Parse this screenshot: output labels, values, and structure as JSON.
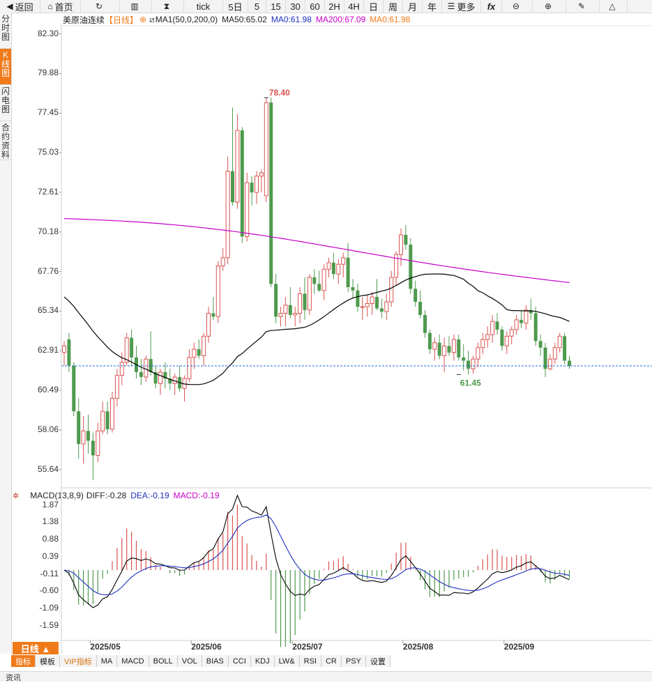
{
  "toolbar": [
    {
      "name": "back-button",
      "icon": "◀",
      "label": "返回"
    },
    {
      "name": "home-button",
      "icon": "⌂",
      "label": "首页"
    },
    {
      "name": "refresh-button",
      "icon": "↻",
      "label": ""
    },
    {
      "name": "bar-chart-button",
      "icon": "▥",
      "label": ""
    },
    {
      "name": "candle-button",
      "icon": "⧗",
      "label": ""
    },
    {
      "name": "period-tick",
      "icon": "",
      "label": "tick"
    },
    {
      "name": "period-5day",
      "icon": "",
      "label": "5日"
    },
    {
      "name": "period-5",
      "icon": "",
      "label": "5"
    },
    {
      "name": "period-15",
      "icon": "",
      "label": "15"
    },
    {
      "name": "period-30",
      "icon": "",
      "label": "30"
    },
    {
      "name": "period-60",
      "icon": "",
      "label": "60"
    },
    {
      "name": "period-2h",
      "icon": "",
      "label": "2H"
    },
    {
      "name": "period-4h",
      "icon": "",
      "label": "4H"
    },
    {
      "name": "period-day",
      "icon": "",
      "label": "日"
    },
    {
      "name": "period-week",
      "icon": "",
      "label": "周"
    },
    {
      "name": "period-month",
      "icon": "",
      "label": "月"
    },
    {
      "name": "period-year",
      "icon": "",
      "label": "年"
    },
    {
      "name": "more-button",
      "icon": "☰",
      "label": "更多"
    },
    {
      "name": "formula-button",
      "icon": "",
      "label": "fx"
    },
    {
      "name": "zoom-out-button",
      "icon": "⊖",
      "label": ""
    },
    {
      "name": "zoom-in-button",
      "icon": "⊕",
      "label": ""
    },
    {
      "name": "draw-button",
      "icon": "✎",
      "label": ""
    },
    {
      "name": "triangle-button",
      "icon": "△",
      "label": ""
    }
  ],
  "sidebar": [
    {
      "label": "分时图",
      "active": false
    },
    {
      "label": "K线图",
      "active": true
    },
    {
      "label": "闪电图",
      "active": false
    },
    {
      "label": "合约资料",
      "active": false
    }
  ],
  "main_legend": {
    "instrument": "美原油连续",
    "period": "【日线】",
    "ma_def": "MA1(50,0,200,0)",
    "ma50": "MA50:65.02",
    "ma0a": "MA0:61.98",
    "ma200": "MA200:67.09",
    "ma0b": "MA0:61.98"
  },
  "macd_legend": {
    "def": "MACD(13,8,9)",
    "diff": "DIFF:-0.28",
    "dea": "DEA:-0.19",
    "macd": "MACD:-0.19"
  },
  "period_button": "日线 ▲",
  "bottom_tabs": [
    "指标",
    "模板",
    "VIP指标",
    "MA",
    "MACD",
    "BOLL",
    "VOL",
    "BIAS",
    "CCI",
    "KDJ",
    "LW&",
    "RSI",
    "CR",
    "PSY",
    "设置"
  ],
  "status_text": "资讯",
  "colors": {
    "up": "#d9534f",
    "down": "#4e9a4e",
    "ma50": "#000000",
    "ma200": "#c800c8",
    "ref": "#1a6fd4",
    "dea": "#1c2fbf",
    "accent": "#f07a1a"
  },
  "chart_data": [
    {
      "type": "candlestick",
      "title": "美原油连续",
      "y_ticks": [
        82.3,
        79.88,
        77.45,
        75.03,
        72.61,
        70.18,
        67.76,
        65.34,
        62.91,
        60.49,
        58.06,
        55.64
      ],
      "ylim": [
        54.6,
        82.8
      ],
      "x_ticks": [
        {
          "label": "2025/05",
          "index": 6
        },
        {
          "label": "2025/06",
          "index": 27
        },
        {
          "label": "2025/07",
          "index": 48
        },
        {
          "label": "2025/08",
          "index": 71
        },
        {
          "label": "2025/09",
          "index": 92
        }
      ],
      "annotations": [
        {
          "text": "78.40",
          "index": 42,
          "value": 78.4
        },
        {
          "text": "61.45",
          "index": 82,
          "value": 61.45
        }
      ],
      "reference_line": 61.98,
      "ohlc": [
        [
          62.8,
          63.5,
          62.0,
          63.2
        ],
        [
          63.6,
          64.0,
          61.6,
          62.0
        ],
        [
          62.0,
          62.2,
          58.9,
          59.2
        ],
        [
          59.2,
          60.0,
          56.3,
          57.2
        ],
        [
          57.2,
          58.9,
          56.0,
          58.0
        ],
        [
          58.0,
          59.0,
          56.6,
          57.4
        ],
        [
          57.4,
          57.9,
          55.0,
          56.5
        ],
        [
          56.5,
          58.5,
          56.1,
          58.0
        ],
        [
          58.0,
          59.8,
          57.8,
          59.2
        ],
        [
          59.2,
          59.8,
          57.8,
          58.1
        ],
        [
          58.1,
          60.4,
          57.9,
          60.0
        ],
        [
          60.0,
          61.8,
          59.5,
          61.4
        ],
        [
          61.4,
          62.8,
          60.8,
          62.2
        ],
        [
          62.2,
          64.0,
          62.0,
          63.7
        ],
        [
          63.7,
          64.2,
          62.0,
          62.5
        ],
        [
          62.5,
          63.2,
          61.2,
          61.6
        ],
        [
          61.6,
          62.4,
          60.8,
          61.3
        ],
        [
          61.3,
          62.6,
          61.0,
          62.4
        ],
        [
          62.4,
          64.1,
          61.4,
          61.6
        ],
        [
          61.6,
          62.0,
          60.6,
          60.9
        ],
        [
          60.9,
          61.8,
          60.2,
          61.6
        ],
        [
          61.6,
          62.2,
          60.6,
          61.2
        ],
        [
          61.2,
          61.8,
          60.5,
          60.9
        ],
        [
          60.9,
          61.5,
          60.2,
          61.3
        ],
        [
          61.3,
          62.0,
          60.4,
          60.6
        ],
        [
          60.6,
          61.4,
          59.8,
          61.2
        ],
        [
          61.2,
          63.0,
          61.0,
          62.5
        ],
        [
          62.5,
          63.4,
          61.8,
          63.0
        ],
        [
          63.0,
          63.6,
          62.4,
          62.6
        ],
        [
          62.6,
          64.0,
          62.0,
          63.8
        ],
        [
          63.8,
          65.6,
          63.4,
          65.2
        ],
        [
          65.2,
          66.2,
          64.8,
          65.0
        ],
        [
          65.0,
          68.4,
          64.6,
          68.1
        ],
        [
          68.1,
          69.2,
          67.8,
          68.6
        ],
        [
          68.6,
          74.8,
          68.2,
          73.9
        ],
        [
          73.9,
          77.8,
          71.8,
          72.0
        ],
        [
          72.0,
          77.4,
          71.6,
          76.4
        ],
        [
          76.4,
          76.6,
          69.5,
          69.9
        ],
        [
          69.9,
          73.8,
          69.6,
          73.2
        ],
        [
          73.2,
          73.6,
          71.8,
          72.6
        ],
        [
          72.6,
          73.9,
          71.9,
          73.6
        ],
        [
          73.6,
          74.0,
          72.6,
          73.8
        ],
        [
          72.4,
          78.4,
          72.0,
          78.1
        ],
        [
          78.1,
          78.4,
          66.8,
          67.0
        ],
        [
          67.0,
          67.6,
          64.6,
          65.0
        ],
        [
          65.0,
          65.6,
          64.4,
          65.2
        ],
        [
          65.2,
          66.2,
          64.4,
          65.7
        ],
        [
          65.7,
          66.8,
          64.9,
          65.1
        ],
        [
          65.1,
          65.6,
          64.4,
          65.2
        ],
        [
          65.2,
          66.8,
          64.6,
          66.4
        ],
        [
          66.4,
          67.4,
          64.8,
          65.4
        ],
        [
          65.4,
          67.6,
          65.1,
          67.4
        ],
        [
          67.4,
          67.9,
          66.4,
          67.0
        ],
        [
          67.0,
          67.8,
          66.5,
          66.6
        ],
        [
          66.6,
          68.2,
          66.0,
          67.9
        ],
        [
          67.9,
          68.6,
          67.4,
          68.3
        ],
        [
          68.3,
          68.9,
          67.3,
          67.6
        ],
        [
          67.6,
          68.5,
          67.0,
          68.2
        ],
        [
          68.2,
          68.9,
          67.4,
          68.6
        ],
        [
          68.6,
          69.5,
          66.5,
          66.8
        ],
        [
          66.8,
          67.3,
          66.1,
          66.6
        ],
        [
          66.6,
          67.0,
          65.3,
          65.6
        ],
        [
          65.6,
          66.2,
          64.8,
          65.6
        ],
        [
          65.6,
          66.3,
          65.0,
          65.8
        ],
        [
          65.8,
          66.5,
          65.1,
          66.2
        ],
        [
          66.2,
          67.3,
          65.4,
          65.5
        ],
        [
          65.5,
          66.1,
          64.9,
          65.3
        ],
        [
          65.3,
          66.4,
          64.8,
          65.9
        ],
        [
          65.9,
          67.8,
          65.6,
          67.4
        ],
        [
          67.4,
          69.0,
          66.9,
          68.8
        ],
        [
          68.8,
          70.4,
          68.1,
          70.0
        ],
        [
          70.0,
          70.6,
          69.1,
          69.4
        ],
        [
          69.4,
          69.8,
          66.4,
          66.7
        ],
        [
          66.7,
          67.2,
          65.6,
          65.9
        ],
        [
          65.9,
          66.6,
          64.9,
          65.1
        ],
        [
          65.1,
          65.4,
          63.7,
          64.0
        ],
        [
          64.0,
          64.2,
          62.7,
          63.0
        ],
        [
          63.0,
          63.7,
          62.3,
          63.4
        ],
        [
          63.4,
          63.9,
          62.4,
          62.6
        ],
        [
          62.6,
          63.7,
          61.6,
          63.2
        ],
        [
          63.2,
          63.8,
          62.6,
          62.8
        ],
        [
          62.8,
          63.9,
          62.3,
          63.6
        ],
        [
          63.6,
          63.9,
          62.3,
          62.5
        ],
        [
          62.5,
          63.3,
          61.7,
          62.3
        ],
        [
          62.3,
          62.9,
          61.45,
          61.8
        ],
        [
          61.8,
          62.6,
          61.5,
          62.4
        ],
        [
          62.4,
          63.4,
          61.9,
          63.1
        ],
        [
          63.1,
          64.0,
          62.7,
          63.6
        ],
        [
          63.6,
          64.4,
          63.1,
          63.9
        ],
        [
          63.9,
          65.1,
          63.4,
          64.7
        ],
        [
          64.7,
          65.2,
          63.9,
          64.2
        ],
        [
          64.2,
          64.4,
          62.9,
          63.2
        ],
        [
          63.2,
          64.1,
          62.7,
          63.8
        ],
        [
          63.8,
          64.4,
          63.3,
          64.2
        ],
        [
          64.2,
          65.1,
          63.9,
          64.8
        ],
        [
          64.8,
          65.4,
          64.3,
          64.6
        ],
        [
          64.6,
          65.7,
          64.2,
          65.4
        ],
        [
          65.4,
          66.1,
          64.8,
          65.2
        ],
        [
          65.2,
          65.6,
          63.2,
          63.5
        ],
        [
          63.5,
          63.9,
          62.6,
          63.1
        ],
        [
          63.1,
          63.4,
          61.3,
          61.8
        ],
        [
          61.8,
          62.7,
          61.7,
          62.4
        ],
        [
          62.4,
          63.4,
          62.1,
          63.1
        ],
        [
          63.1,
          64.0,
          62.8,
          63.8
        ],
        [
          63.8,
          64.0,
          62.1,
          62.3
        ],
        [
          62.3,
          62.6,
          61.8,
          61.98
        ]
      ]
    },
    {
      "type": "macd",
      "title": "MACD(13,8,9)",
      "y_ticks": [
        1.87,
        1.38,
        0.88,
        0.39,
        -0.11,
        -0.6,
        -1.09,
        -1.59
      ],
      "ylim": [
        -2.0,
        2.0
      ]
    }
  ]
}
